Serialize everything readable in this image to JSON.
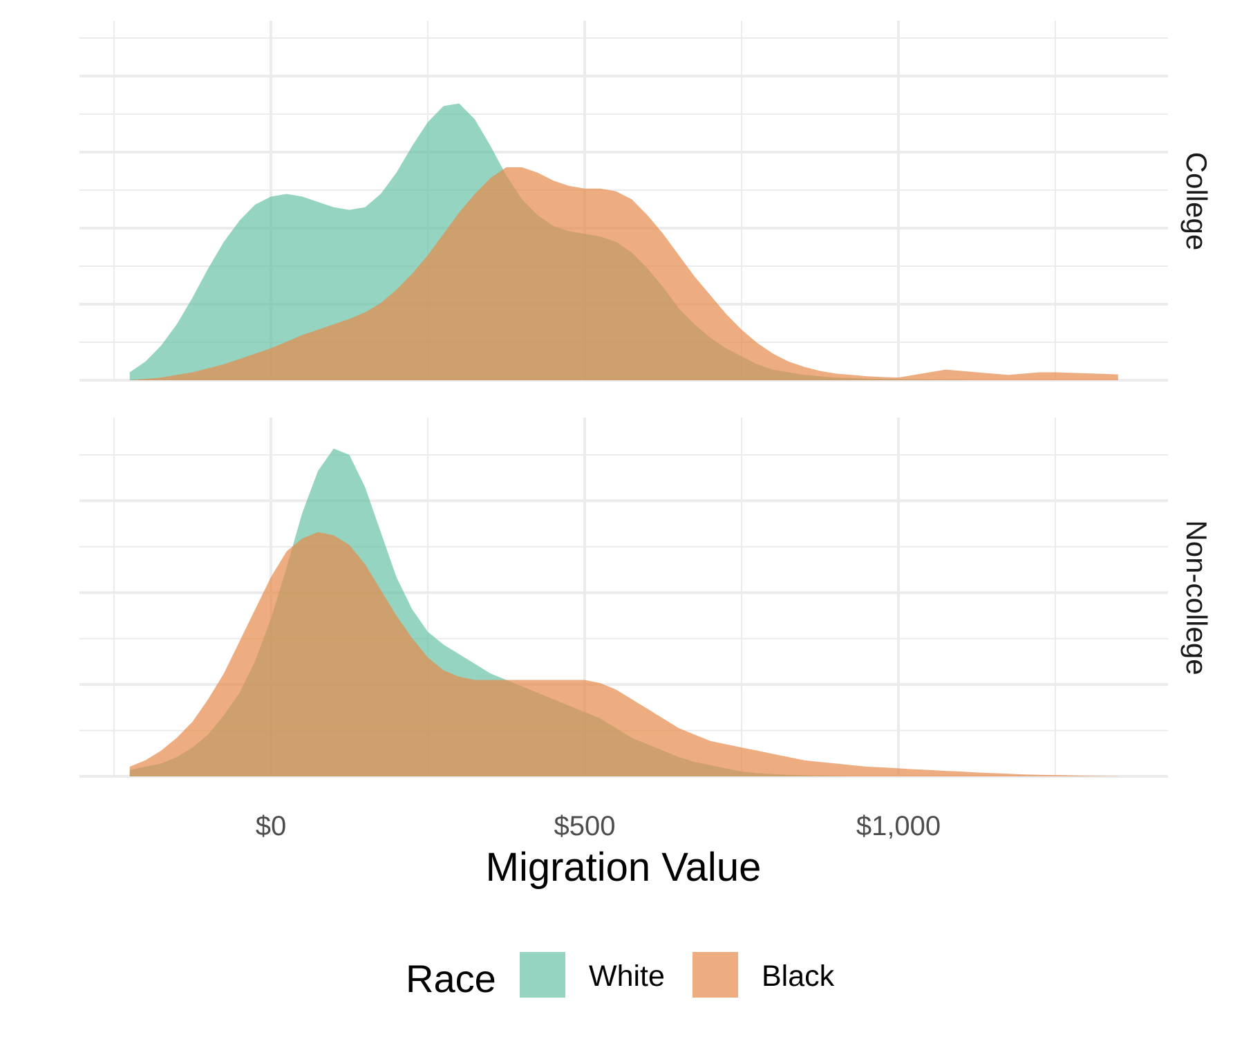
{
  "chart_data": {
    "type": "area",
    "subtype": "density",
    "xlabel": "Migration Value",
    "x_ticks": [
      {
        "value": 0,
        "label": "$0"
      },
      {
        "value": 500,
        "label": "$500"
      },
      {
        "value": 1000,
        "label": "$1,000"
      }
    ],
    "xlim": [
      -310,
      1370
    ],
    "grid": true,
    "legend": {
      "title": "Race",
      "position": "bottom",
      "entries": [
        {
          "label": "White",
          "color": "#66c2a5"
        },
        {
          "label": "Black",
          "color": "#e78a4a"
        }
      ]
    },
    "colors": {
      "White": "#66c2a5",
      "Black": "#e78a4a"
    },
    "fill_opacity": 0.7,
    "panels": [
      {
        "label": "College",
        "series": [
          {
            "name": "White",
            "x": [
              -225,
              -200,
              -175,
              -150,
              -125,
              -100,
              -75,
              -50,
              -25,
              0,
              25,
              50,
              75,
              100,
              125,
              150,
              175,
              200,
              225,
              250,
              275,
              300,
              325,
              350,
              375,
              400,
              425,
              450,
              475,
              500,
              525,
              550,
              575,
              600,
              625,
              650,
              675,
              700,
              725,
              750,
              775,
              800,
              825,
              850,
              875,
              900,
              925,
              950,
              975,
              1000,
              1025,
              1050,
              1075,
              1100,
              1125,
              1150,
              1175,
              1200,
              1225,
              1250,
              1275,
              1300,
              1325,
              1350
            ],
            "y": [
              0.03,
              0.07,
              0.13,
              0.21,
              0.31,
              0.42,
              0.52,
              0.6,
              0.66,
              0.69,
              0.7,
              0.69,
              0.67,
              0.65,
              0.64,
              0.65,
              0.7,
              0.78,
              0.88,
              0.97,
              1.03,
              1.04,
              0.98,
              0.88,
              0.77,
              0.68,
              0.62,
              0.58,
              0.56,
              0.55,
              0.54,
              0.52,
              0.48,
              0.42,
              0.35,
              0.27,
              0.21,
              0.16,
              0.12,
              0.09,
              0.06,
              0.04,
              0.03,
              0.02,
              0.015,
              0.01,
              0.008,
              0.006,
              0.005,
              0.004,
              0.003,
              0.002,
              0.001,
              0.0005,
              0,
              0,
              0,
              0,
              0,
              0,
              0,
              0,
              0,
              0
            ]
          },
          {
            "name": "Black",
            "x": [
              -225,
              -200,
              -175,
              -150,
              -125,
              -100,
              -75,
              -50,
              -25,
              0,
              25,
              50,
              75,
              100,
              125,
              150,
              175,
              200,
              225,
              250,
              275,
              300,
              325,
              350,
              375,
              400,
              425,
              450,
              475,
              500,
              525,
              550,
              575,
              600,
              625,
              650,
              675,
              700,
              725,
              750,
              775,
              800,
              825,
              850,
              875,
              900,
              925,
              950,
              975,
              1000,
              1025,
              1050,
              1075,
              1100,
              1125,
              1150,
              1175,
              1200,
              1225,
              1250,
              1275,
              1300,
              1325,
              1350
            ],
            "y": [
              0.0,
              0.005,
              0.01,
              0.02,
              0.03,
              0.045,
              0.06,
              0.08,
              0.1,
              0.12,
              0.145,
              0.17,
              0.19,
              0.21,
              0.23,
              0.255,
              0.29,
              0.34,
              0.4,
              0.47,
              0.55,
              0.63,
              0.7,
              0.76,
              0.8,
              0.8,
              0.78,
              0.75,
              0.73,
              0.72,
              0.72,
              0.71,
              0.68,
              0.62,
              0.55,
              0.47,
              0.39,
              0.32,
              0.25,
              0.19,
              0.14,
              0.1,
              0.07,
              0.05,
              0.035,
              0.025,
              0.02,
              0.015,
              0.012,
              0.01,
              0.02,
              0.03,
              0.04,
              0.035,
              0.03,
              0.025,
              0.02,
              0.025,
              0.03,
              0.03,
              0.028,
              0.026,
              0.024,
              0.022
            ]
          }
        ]
      },
      {
        "label": "Non-college",
        "series": [
          {
            "name": "White",
            "x": [
              -225,
              -200,
              -175,
              -150,
              -125,
              -100,
              -75,
              -50,
              -25,
              0,
              25,
              50,
              75,
              100,
              125,
              150,
              175,
              200,
              225,
              250,
              275,
              300,
              325,
              350,
              375,
              400,
              425,
              450,
              475,
              500,
              525,
              550,
              575,
              600,
              625,
              650,
              675,
              700,
              725,
              750,
              775,
              800,
              825,
              850,
              875,
              900,
              925,
              950,
              975,
              1000,
              1025,
              1050,
              1075,
              1100,
              1125,
              1150,
              1175,
              1200,
              1225,
              1250,
              1275,
              1300,
              1325,
              1350
            ],
            "y": [
              0.02,
              0.03,
              0.04,
              0.06,
              0.09,
              0.13,
              0.19,
              0.26,
              0.36,
              0.49,
              0.65,
              0.82,
              0.95,
              1.02,
              1.0,
              0.9,
              0.76,
              0.62,
              0.52,
              0.45,
              0.41,
              0.38,
              0.35,
              0.32,
              0.3,
              0.28,
              0.26,
              0.24,
              0.22,
              0.2,
              0.18,
              0.15,
              0.12,
              0.1,
              0.08,
              0.06,
              0.045,
              0.035,
              0.025,
              0.015,
              0.01,
              0.007,
              0.005,
              0.003,
              0.002,
              0.001,
              0,
              0,
              0,
              0,
              0,
              0,
              0,
              0,
              0,
              0,
              0,
              0,
              0,
              0,
              0,
              0,
              0,
              0
            ]
          },
          {
            "name": "Black",
            "x": [
              -225,
              -200,
              -175,
              -150,
              -125,
              -100,
              -75,
              -50,
              -25,
              0,
              25,
              50,
              75,
              100,
              125,
              150,
              175,
              200,
              225,
              250,
              275,
              300,
              325,
              350,
              375,
              400,
              425,
              450,
              475,
              500,
              525,
              550,
              575,
              600,
              625,
              650,
              675,
              700,
              725,
              750,
              775,
              800,
              825,
              850,
              875,
              900,
              925,
              950,
              975,
              1000,
              1025,
              1050,
              1075,
              1100,
              1125,
              1150,
              1175,
              1200,
              1225,
              1250,
              1275,
              1300,
              1325,
              1350
            ],
            "y": [
              0.03,
              0.05,
              0.08,
              0.12,
              0.17,
              0.24,
              0.32,
              0.42,
              0.52,
              0.62,
              0.7,
              0.74,
              0.76,
              0.75,
              0.72,
              0.66,
              0.58,
              0.5,
              0.43,
              0.37,
              0.33,
              0.31,
              0.3,
              0.3,
              0.3,
              0.3,
              0.3,
              0.3,
              0.3,
              0.3,
              0.29,
              0.27,
              0.24,
              0.21,
              0.18,
              0.15,
              0.13,
              0.11,
              0.1,
              0.09,
              0.08,
              0.07,
              0.06,
              0.05,
              0.045,
              0.04,
              0.035,
              0.03,
              0.028,
              0.025,
              0.022,
              0.02,
              0.017,
              0.015,
              0.012,
              0.01,
              0.008,
              0.006,
              0.005,
              0.004,
              0.003,
              0.002,
              0.001,
              0.0005
            ]
          }
        ]
      }
    ]
  }
}
